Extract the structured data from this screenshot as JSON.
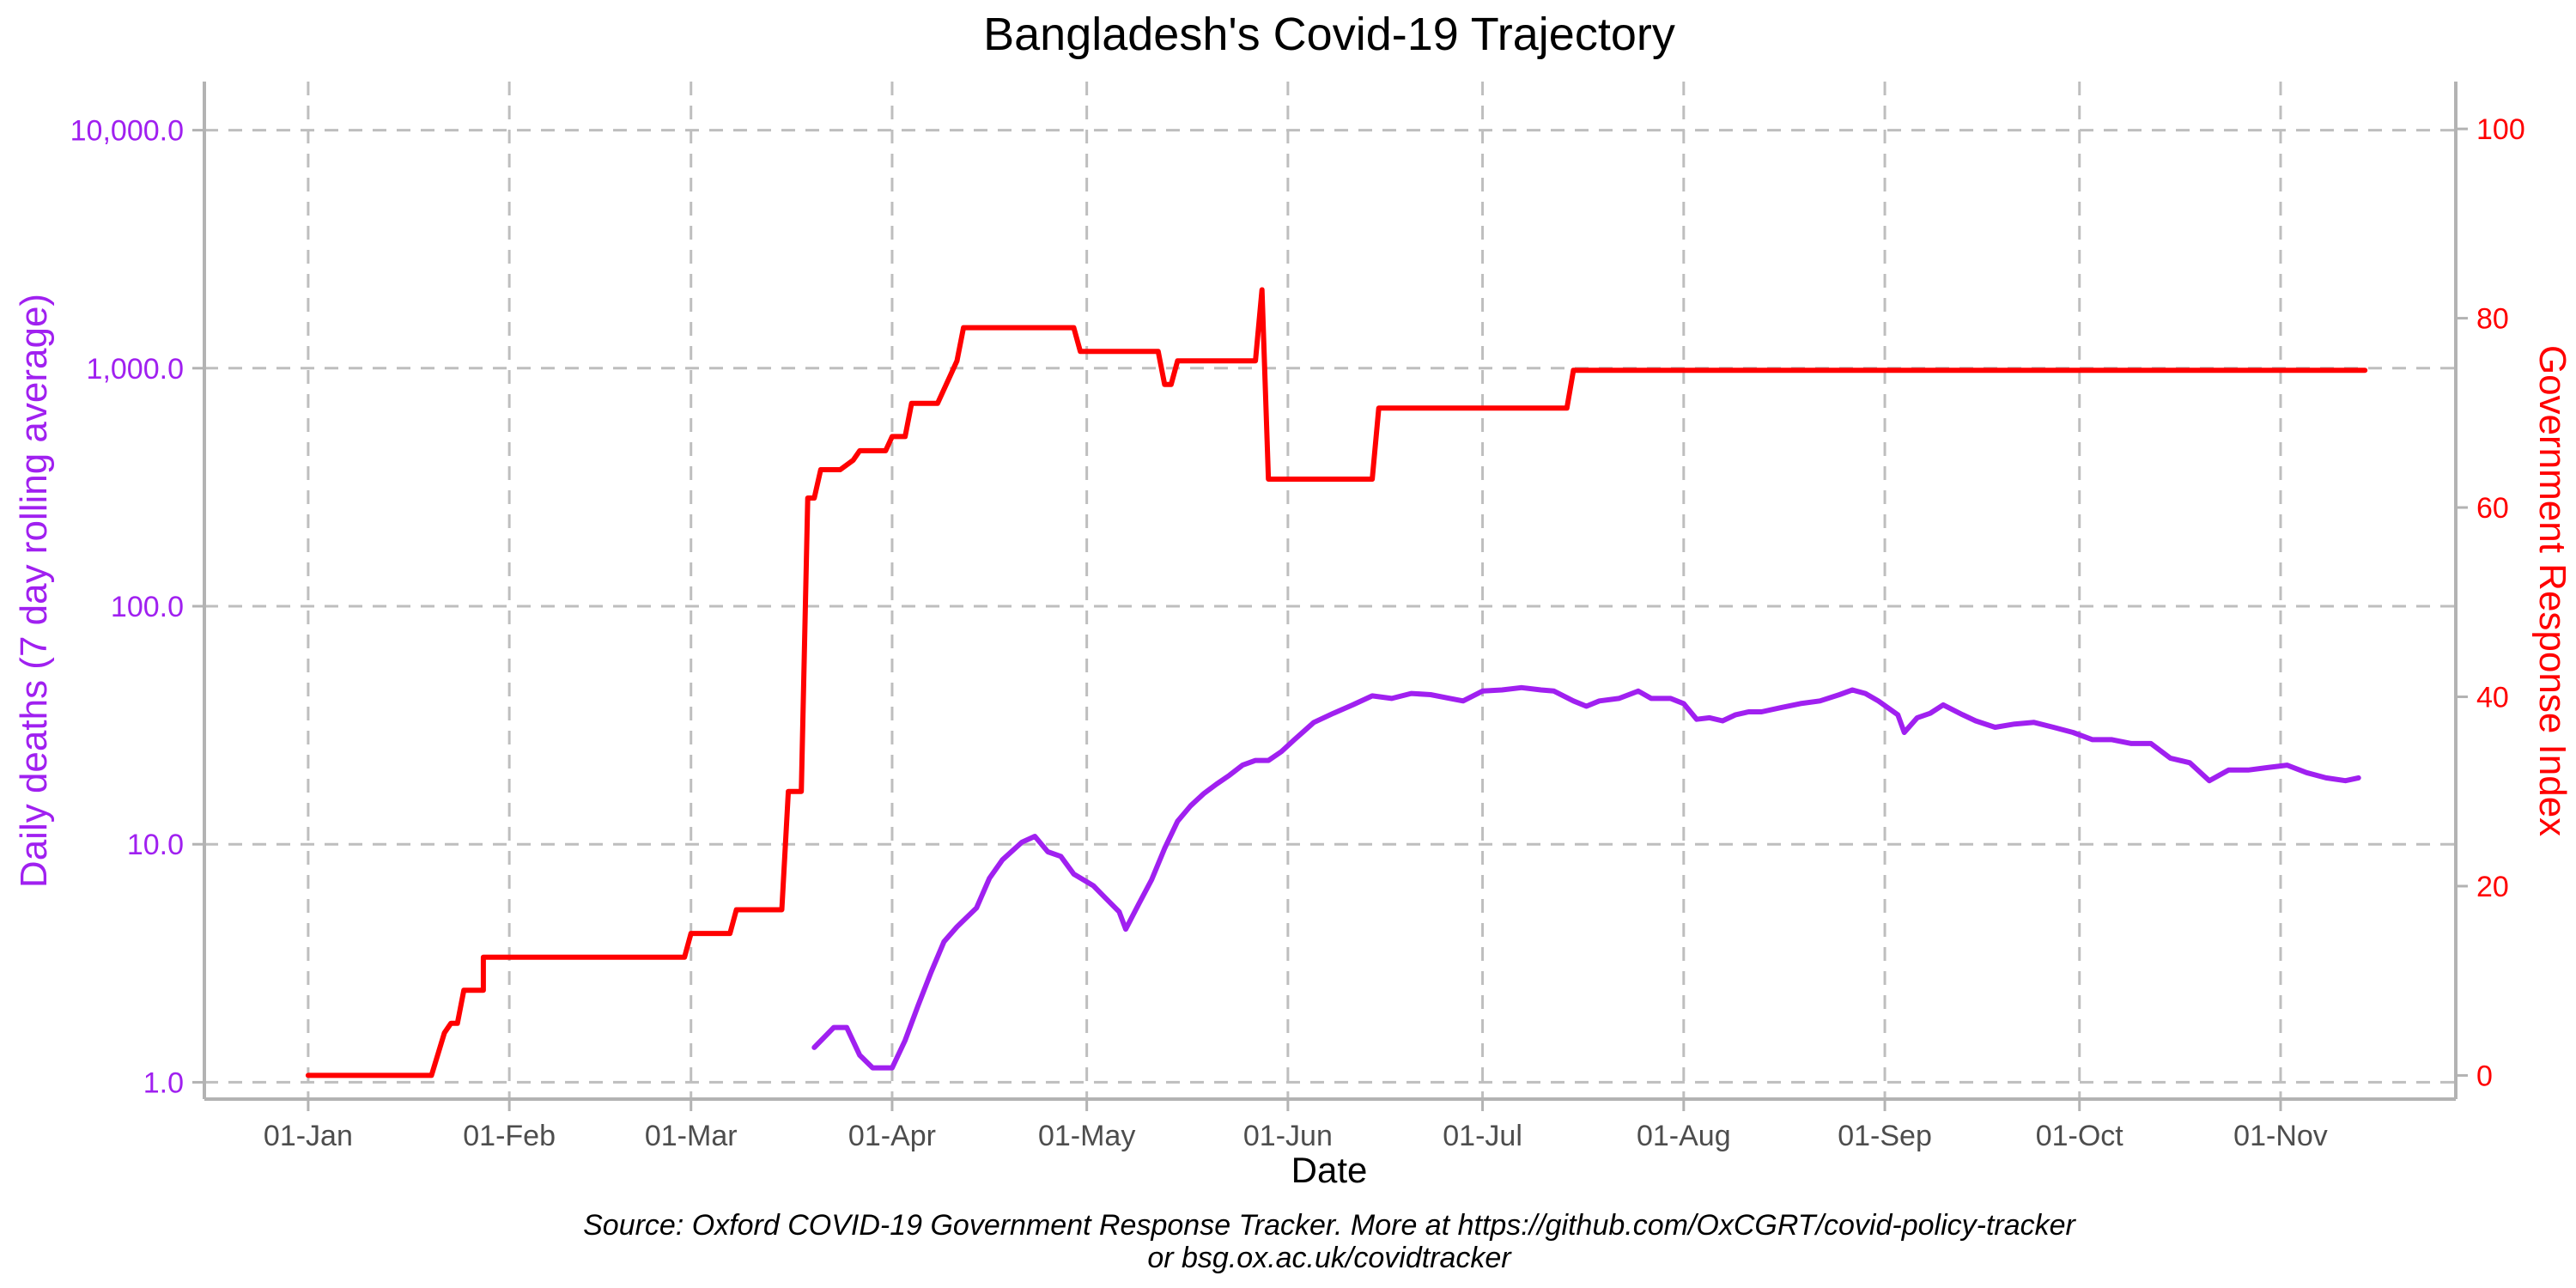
{
  "chart_data": {
    "type": "line",
    "title": "Bangladesh's Covid-19 Trajectory",
    "xlabel": "Date",
    "ylabel_left": "Daily deaths (7 day rolling average)",
    "ylabel_right": "Government Response Index",
    "caption_line1": "Source: Oxford COVID-19 Government Response Tracker. More at https://github.com/OxCGRT/covid-policy-tracker",
    "caption_line2": "or bsg.ox.ac.uk/covidtracker",
    "x_range": [
      "2020-12-16",
      "2021-11-28"
    ],
    "x_ticks": [
      {
        "date": "2021-01-01",
        "label": "01-Jan"
      },
      {
        "date": "2021-02-01",
        "label": "01-Feb"
      },
      {
        "date": "2021-03-01",
        "label": "01-Mar"
      },
      {
        "date": "2021-04-01",
        "label": "01-Apr"
      },
      {
        "date": "2021-05-01",
        "label": "01-May"
      },
      {
        "date": "2021-06-01",
        "label": "01-Jun"
      },
      {
        "date": "2021-07-01",
        "label": "01-Jul"
      },
      {
        "date": "2021-08-01",
        "label": "01-Aug"
      },
      {
        "date": "2021-09-01",
        "label": "01-Sep"
      },
      {
        "date": "2021-10-01",
        "label": "01-Oct"
      },
      {
        "date": "2021-11-01",
        "label": "01-Nov"
      }
    ],
    "y_left": {
      "scale": "log10",
      "range": [
        0.85,
        16000
      ],
      "ticks": [
        {
          "value": 1,
          "label": "1.0"
        },
        {
          "value": 10,
          "label": "10.0"
        },
        {
          "value": 100,
          "label": "100.0"
        },
        {
          "value": 1000,
          "label": "1,000.0"
        },
        {
          "value": 10000,
          "label": "10,000.0"
        }
      ]
    },
    "y_right": {
      "scale": "linear",
      "range": [
        -2.5,
        105
      ],
      "ticks": [
        {
          "value": 0,
          "label": "0"
        },
        {
          "value": 20,
          "label": "20"
        },
        {
          "value": 40,
          "label": "40"
        },
        {
          "value": 60,
          "label": "60"
        },
        {
          "value": 80,
          "label": "80"
        },
        {
          "value": 100,
          "label": "100"
        }
      ]
    },
    "grid": "dashed",
    "colors": {
      "deaths": "#a020f0",
      "response_index": "#ff0000",
      "grid": "#bebebe",
      "axis": "#b3b3b3",
      "tick_text": "#4d4d4d"
    },
    "series": [
      {
        "axis": "left",
        "color": "#a020f0",
        "points": [
          [
            "2021-03-20",
            1.4
          ],
          [
            "2021-03-23",
            1.7
          ],
          [
            "2021-03-25",
            1.7
          ],
          [
            "2021-03-27",
            1.3
          ],
          [
            "2021-03-29",
            1.15
          ],
          [
            "2021-04-01",
            1.15
          ],
          [
            "2021-04-03",
            1.5
          ],
          [
            "2021-04-05",
            2.1
          ],
          [
            "2021-04-07",
            2.9
          ],
          [
            "2021-04-09",
            3.9
          ],
          [
            "2021-04-11",
            4.5
          ],
          [
            "2021-04-14",
            5.4
          ],
          [
            "2021-04-16",
            7.2
          ],
          [
            "2021-04-18",
            8.6
          ],
          [
            "2021-04-21",
            10.2
          ],
          [
            "2021-04-23",
            10.8
          ],
          [
            "2021-04-25",
            9.3
          ],
          [
            "2021-04-27",
            8.9
          ],
          [
            "2021-04-29",
            7.5
          ],
          [
            "2021-05-02",
            6.7
          ],
          [
            "2021-05-04",
            5.9
          ],
          [
            "2021-05-06",
            5.2
          ],
          [
            "2021-05-07",
            4.4
          ],
          [
            "2021-05-09",
            5.6
          ],
          [
            "2021-05-11",
            7.1
          ],
          [
            "2021-05-13",
            9.6
          ],
          [
            "2021-05-15",
            12.5
          ],
          [
            "2021-05-17",
            14.5
          ],
          [
            "2021-05-19",
            16.3
          ],
          [
            "2021-05-21",
            17.9
          ],
          [
            "2021-05-23",
            19.5
          ],
          [
            "2021-05-25",
            21.5
          ],
          [
            "2021-05-27",
            22.5
          ],
          [
            "2021-05-29",
            22.5
          ],
          [
            "2021-05-31",
            24.5
          ],
          [
            "2021-06-02",
            27.5
          ],
          [
            "2021-06-05",
            32.5
          ],
          [
            "2021-06-08",
            35.5
          ],
          [
            "2021-06-11",
            38.5
          ],
          [
            "2021-06-14",
            42
          ],
          [
            "2021-06-17",
            41
          ],
          [
            "2021-06-20",
            43
          ],
          [
            "2021-06-23",
            42.5
          ],
          [
            "2021-06-26",
            41
          ],
          [
            "2021-06-28",
            40
          ],
          [
            "2021-07-01",
            44
          ],
          [
            "2021-07-04",
            44.5
          ],
          [
            "2021-07-07",
            45.5
          ],
          [
            "2021-07-10",
            44.5
          ],
          [
            "2021-07-12",
            44
          ],
          [
            "2021-07-15",
            40
          ],
          [
            "2021-07-17",
            38
          ],
          [
            "2021-07-19",
            40
          ],
          [
            "2021-07-22",
            41
          ],
          [
            "2021-07-25",
            44
          ],
          [
            "2021-07-27",
            41
          ],
          [
            "2021-07-30",
            41
          ],
          [
            "2021-08-01",
            39
          ],
          [
            "2021-08-03",
            33.5
          ],
          [
            "2021-08-05",
            34
          ],
          [
            "2021-08-07",
            33
          ],
          [
            "2021-08-09",
            35
          ],
          [
            "2021-08-11",
            36
          ],
          [
            "2021-08-13",
            36
          ],
          [
            "2021-08-16",
            37.5
          ],
          [
            "2021-08-19",
            39
          ],
          [
            "2021-08-22",
            40
          ],
          [
            "2021-08-25",
            42.5
          ],
          [
            "2021-08-27",
            44.5
          ],
          [
            "2021-08-29",
            43
          ],
          [
            "2021-08-31",
            40
          ],
          [
            "2021-09-03",
            35
          ],
          [
            "2021-09-04",
            29.5
          ],
          [
            "2021-09-06",
            34
          ],
          [
            "2021-09-08",
            35.5
          ],
          [
            "2021-09-10",
            38.5
          ],
          [
            "2021-09-13",
            35
          ],
          [
            "2021-09-15",
            33
          ],
          [
            "2021-09-18",
            31
          ],
          [
            "2021-09-21",
            32
          ],
          [
            "2021-09-24",
            32.5
          ],
          [
            "2021-09-27",
            31
          ],
          [
            "2021-09-30",
            29.5
          ],
          [
            "2021-10-03",
            27.5
          ],
          [
            "2021-10-06",
            27.5
          ],
          [
            "2021-10-09",
            26.5
          ],
          [
            "2021-10-12",
            26.5
          ],
          [
            "2021-10-15",
            23
          ],
          [
            "2021-10-18",
            22
          ],
          [
            "2021-10-21",
            18.5
          ],
          [
            "2021-10-24",
            20.5
          ],
          [
            "2021-10-27",
            20.5
          ],
          [
            "2021-10-30",
            21
          ],
          [
            "2021-11-02",
            21.5
          ],
          [
            "2021-11-05",
            20
          ],
          [
            "2021-11-08",
            19
          ],
          [
            "2021-11-11",
            18.5
          ],
          [
            "2021-11-13",
            19
          ]
        ]
      },
      {
        "axis": "right",
        "color": "#ff0000",
        "step": true,
        "points": [
          [
            "2021-01-01",
            0
          ],
          [
            "2021-01-20",
            0
          ],
          [
            "2021-01-22",
            4.5
          ],
          [
            "2021-01-23",
            5.5
          ],
          [
            "2021-01-24",
            5.5
          ],
          [
            "2021-01-25",
            9
          ],
          [
            "2021-01-28",
            9
          ],
          [
            "2021-01-28",
            12.5
          ],
          [
            "2021-02-28",
            12.5
          ],
          [
            "2021-03-01",
            15
          ],
          [
            "2021-03-07",
            15
          ],
          [
            "2021-03-08",
            17.5
          ],
          [
            "2021-03-15",
            17.5
          ],
          [
            "2021-03-16",
            30
          ],
          [
            "2021-03-18",
            30
          ],
          [
            "2021-03-19",
            61
          ],
          [
            "2021-03-20",
            61
          ],
          [
            "2021-03-21",
            64
          ],
          [
            "2021-03-24",
            64
          ],
          [
            "2021-03-26",
            65
          ],
          [
            "2021-03-27",
            66
          ],
          [
            "2021-03-31",
            66
          ],
          [
            "2021-04-01",
            67.5
          ],
          [
            "2021-04-03",
            67.5
          ],
          [
            "2021-04-04",
            71
          ],
          [
            "2021-04-08",
            71
          ],
          [
            "2021-04-10",
            74
          ],
          [
            "2021-04-11",
            75.5
          ],
          [
            "2021-04-12",
            79
          ],
          [
            "2021-04-29",
            79
          ],
          [
            "2021-04-30",
            76.5
          ],
          [
            "2021-05-12",
            76.5
          ],
          [
            "2021-05-13",
            73
          ],
          [
            "2021-05-14",
            73
          ],
          [
            "2021-05-15",
            75.5
          ],
          [
            "2021-05-27",
            75.5
          ],
          [
            "2021-05-28",
            83
          ],
          [
            "2021-05-29",
            63
          ],
          [
            "2021-06-14",
            63
          ],
          [
            "2021-06-15",
            70.5
          ],
          [
            "2021-07-14",
            70.5
          ],
          [
            "2021-07-15",
            74.5
          ],
          [
            "2021-11-14",
            74.5
          ]
        ]
      }
    ]
  }
}
